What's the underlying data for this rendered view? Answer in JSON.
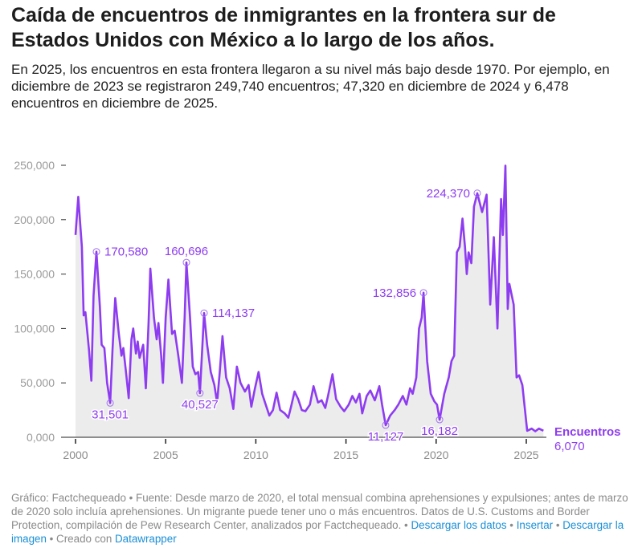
{
  "header": {
    "title": "Caída de encuentros de inmigrantes en la frontera sur de Estados Unidos con México a lo largo de los años.",
    "subtitle": "En 2025, los encuentros en esta frontera llegaron a su nivel más bajo desde 1970. Por ejemplo, en diciembre de 2023 se registraron 249,740 encuentros; 47,320 en diciembre de 2024 y 6,478 encuentros en diciembre de 2025."
  },
  "footer": {
    "text": "Gráfico: Factchequeado • Fuente: Desde marzo de 2020, el total mensual combina aprehensiones y expulsiones; antes de marzo de 2020 solo incluía aprehensiones. Un migrante puede tener uno o más encuentros. Datos de U.S. Customs and Border Protection, compilación de Pew Research Center, analizados por Factchequeado. ",
    "sep1": " • ",
    "download_data": "Descargar los datos",
    "sep2": " • ",
    "embed": "Insertar",
    "sep3": " • ",
    "download_image": "Descargar la imagen",
    "created_with": " • Creado con ",
    "datawrapper": "Datawrapper"
  },
  "chart_data": {
    "type": "area",
    "title": "Caída de encuentros de inmigrantes en la frontera sur de Estados Unidos con México a lo largo de los años.",
    "xlabel": "",
    "ylabel": "",
    "xlim": [
      2000,
      2026
    ],
    "ylim": [
      0,
      250000
    ],
    "grid": false,
    "line_color": "#8e3cf0",
    "fill_color": "#ececec",
    "yticks": [
      {
        "v": 0,
        "label": "0,000"
      },
      {
        "v": 50000,
        "label": "50,000"
      },
      {
        "v": 100000,
        "label": "100,000"
      },
      {
        "v": 150000,
        "label": "150,000"
      },
      {
        "v": 200000,
        "label": "200,000"
      },
      {
        "v": 250000,
        "label": "250,000"
      }
    ],
    "xticks": [
      {
        "v": 2000,
        "label": "2000"
      },
      {
        "v": 2005,
        "label": "2005"
      },
      {
        "v": 2010,
        "label": "2010"
      },
      {
        "v": 2015,
        "label": "2015"
      },
      {
        "v": 2020,
        "label": "2020"
      },
      {
        "v": 2025,
        "label": "2025"
      }
    ],
    "series": [
      {
        "name": "Encuentros",
        "last_value_label": "6,070",
        "points": [
          [
            2000.0,
            186000
          ],
          [
            2000.15,
            221000
          ],
          [
            2000.35,
            175000
          ],
          [
            2000.45,
            112000
          ],
          [
            2000.55,
            115000
          ],
          [
            2000.75,
            80000
          ],
          [
            2000.88,
            52000
          ],
          [
            2001.0,
            130000
          ],
          [
            2001.16,
            170580
          ],
          [
            2001.35,
            120000
          ],
          [
            2001.45,
            85000
          ],
          [
            2001.6,
            82000
          ],
          [
            2001.75,
            50000
          ],
          [
            2001.92,
            31501
          ],
          [
            2002.05,
            80000
          ],
          [
            2002.2,
            128000
          ],
          [
            2002.4,
            95000
          ],
          [
            2002.55,
            75000
          ],
          [
            2002.65,
            82000
          ],
          [
            2002.8,
            60000
          ],
          [
            2002.95,
            36000
          ],
          [
            2003.1,
            90000
          ],
          [
            2003.2,
            100000
          ],
          [
            2003.35,
            77000
          ],
          [
            2003.45,
            88000
          ],
          [
            2003.55,
            73000
          ],
          [
            2003.75,
            85000
          ],
          [
            2003.9,
            45000
          ],
          [
            2004.05,
            105000
          ],
          [
            2004.15,
            155000
          ],
          [
            2004.35,
            110000
          ],
          [
            2004.5,
            90000
          ],
          [
            2004.6,
            105000
          ],
          [
            2004.75,
            75000
          ],
          [
            2004.85,
            50000
          ],
          [
            2005.0,
            110000
          ],
          [
            2005.15,
            145000
          ],
          [
            2005.35,
            95000
          ],
          [
            2005.5,
            98000
          ],
          [
            2005.7,
            75000
          ],
          [
            2005.9,
            50000
          ],
          [
            2006.05,
            110000
          ],
          [
            2006.15,
            160696
          ],
          [
            2006.35,
            110000
          ],
          [
            2006.5,
            65000
          ],
          [
            2006.65,
            58000
          ],
          [
            2006.8,
            60000
          ],
          [
            2006.9,
            40527
          ],
          [
            2007.13,
            114137
          ],
          [
            2007.3,
            85000
          ],
          [
            2007.5,
            60000
          ],
          [
            2007.7,
            48000
          ],
          [
            2007.85,
            32000
          ],
          [
            2008.0,
            60000
          ],
          [
            2008.15,
            93000
          ],
          [
            2008.35,
            55000
          ],
          [
            2008.55,
            45000
          ],
          [
            2008.75,
            26000
          ],
          [
            2008.95,
            65000
          ],
          [
            2009.15,
            50000
          ],
          [
            2009.4,
            42000
          ],
          [
            2009.6,
            48000
          ],
          [
            2009.75,
            28000
          ],
          [
            2009.95,
            45000
          ],
          [
            2010.15,
            60000
          ],
          [
            2010.35,
            40000
          ],
          [
            2010.55,
            30000
          ],
          [
            2010.75,
            20000
          ],
          [
            2010.95,
            25000
          ],
          [
            2011.15,
            41000
          ],
          [
            2011.35,
            25000
          ],
          [
            2011.6,
            22000
          ],
          [
            2011.8,
            18000
          ],
          [
            2011.95,
            28000
          ],
          [
            2012.15,
            42000
          ],
          [
            2012.35,
            35000
          ],
          [
            2012.55,
            25000
          ],
          [
            2012.75,
            24000
          ],
          [
            2013.0,
            30000
          ],
          [
            2013.2,
            47000
          ],
          [
            2013.45,
            32000
          ],
          [
            2013.65,
            34000
          ],
          [
            2013.85,
            27000
          ],
          [
            2014.0,
            38000
          ],
          [
            2014.25,
            58000
          ],
          [
            2014.45,
            35000
          ],
          [
            2014.7,
            28000
          ],
          [
            2014.9,
            24000
          ],
          [
            2015.15,
            30000
          ],
          [
            2015.35,
            38000
          ],
          [
            2015.55,
            32000
          ],
          [
            2015.75,
            40000
          ],
          [
            2015.9,
            22000
          ],
          [
            2016.15,
            38000
          ],
          [
            2016.35,
            43000
          ],
          [
            2016.6,
            34000
          ],
          [
            2016.85,
            47000
          ],
          [
            2017.0,
            30000
          ],
          [
            2017.2,
            11127
          ],
          [
            2017.45,
            20000
          ],
          [
            2017.7,
            25000
          ],
          [
            2017.9,
            30000
          ],
          [
            2018.15,
            38000
          ],
          [
            2018.35,
            30000
          ],
          [
            2018.55,
            45000
          ],
          [
            2018.7,
            40000
          ],
          [
            2018.9,
            55000
          ],
          [
            2019.05,
            100000
          ],
          [
            2019.2,
            110000
          ],
          [
            2019.3,
            132856
          ],
          [
            2019.5,
            70000
          ],
          [
            2019.7,
            40000
          ],
          [
            2019.9,
            33000
          ],
          [
            2020.05,
            30000
          ],
          [
            2020.19,
            16182
          ],
          [
            2020.45,
            40000
          ],
          [
            2020.7,
            55000
          ],
          [
            2020.85,
            70000
          ],
          [
            2021.0,
            75000
          ],
          [
            2021.15,
            170000
          ],
          [
            2021.3,
            175000
          ],
          [
            2021.46,
            201000
          ],
          [
            2021.6,
            175000
          ],
          [
            2021.7,
            150000
          ],
          [
            2021.8,
            170000
          ],
          [
            2021.95,
            160000
          ],
          [
            2022.1,
            212000
          ],
          [
            2022.28,
            224370
          ],
          [
            2022.55,
            207000
          ],
          [
            2022.8,
            223000
          ],
          [
            2023.0,
            122000
          ],
          [
            2023.2,
            184000
          ],
          [
            2023.4,
            100000
          ],
          [
            2023.6,
            219000
          ],
          [
            2023.7,
            186000
          ],
          [
            2023.84,
            249740
          ],
          [
            2023.97,
            118000
          ],
          [
            2024.06,
            141000
          ],
          [
            2024.3,
            122000
          ],
          [
            2024.46,
            55000
          ],
          [
            2024.6,
            57000
          ],
          [
            2024.78,
            48000
          ],
          [
            2025.05,
            6000
          ],
          [
            2025.3,
            8000
          ],
          [
            2025.5,
            5500
          ],
          [
            2025.7,
            8000
          ],
          [
            2025.95,
            6070
          ]
        ]
      }
    ],
    "annotations": [
      {
        "x": 2001.16,
        "y": 170580,
        "label": "170,580",
        "side": "right"
      },
      {
        "x": 2001.92,
        "y": 31501,
        "label": "31,501",
        "side": "below"
      },
      {
        "x": 2006.15,
        "y": 160696,
        "label": "160,696",
        "side": "above"
      },
      {
        "x": 2006.9,
        "y": 40527,
        "label": "40,527",
        "side": "below"
      },
      {
        "x": 2007.13,
        "y": 114137,
        "label": "114,137",
        "side": "right"
      },
      {
        "x": 2017.2,
        "y": 11127,
        "label": "11,127",
        "side": "below"
      },
      {
        "x": 2019.3,
        "y": 132856,
        "label": "132,856",
        "side": "left"
      },
      {
        "x": 2020.19,
        "y": 16182,
        "label": "16,182",
        "side": "below"
      },
      {
        "x": 2022.28,
        "y": 224370,
        "label": "224,370",
        "side": "left"
      }
    ]
  }
}
